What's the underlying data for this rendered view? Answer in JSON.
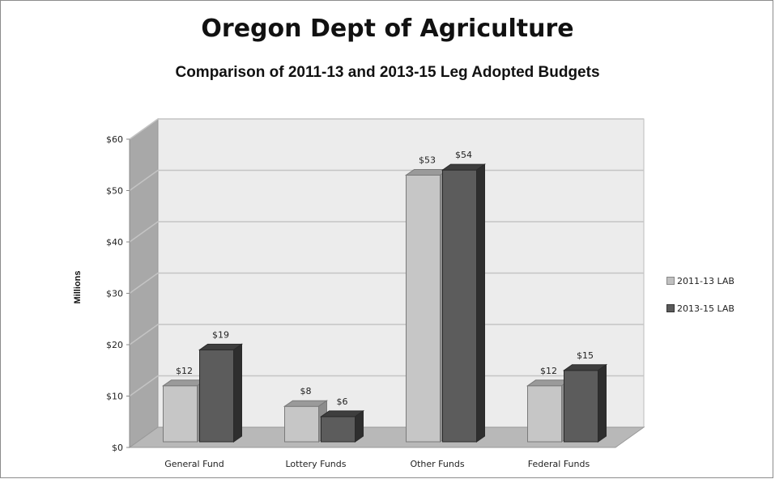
{
  "chart_data": {
    "type": "bar",
    "title": "Oregon Dept of Agriculture",
    "subtitle": "Comparison of 2011-13 and 2013-15 Leg Adopted Budgets",
    "ylabel": "Millions",
    "xlabel": "",
    "ylim": [
      0,
      60
    ],
    "yticks": [
      "$0",
      "$10",
      "$20",
      "$30",
      "$40",
      "$50",
      "$60"
    ],
    "categories": [
      "General Fund",
      "Lottery Funds",
      "Other Funds",
      "Federal Funds"
    ],
    "series": [
      {
        "name": "2011-13 LAB",
        "values": [
          12,
          8,
          53,
          12
        ],
        "labels": [
          "$12",
          "$8",
          "$53",
          "$12"
        ],
        "color": "#c0c0c0"
      },
      {
        "name": "2013-15 LAB",
        "values": [
          19,
          6,
          54,
          15
        ],
        "labels": [
          "$19",
          "$6",
          "$54",
          "$15"
        ],
        "color": "#5a5a5a"
      }
    ],
    "grid": true,
    "legend_position": "right",
    "style": "3d-clustered-column"
  }
}
